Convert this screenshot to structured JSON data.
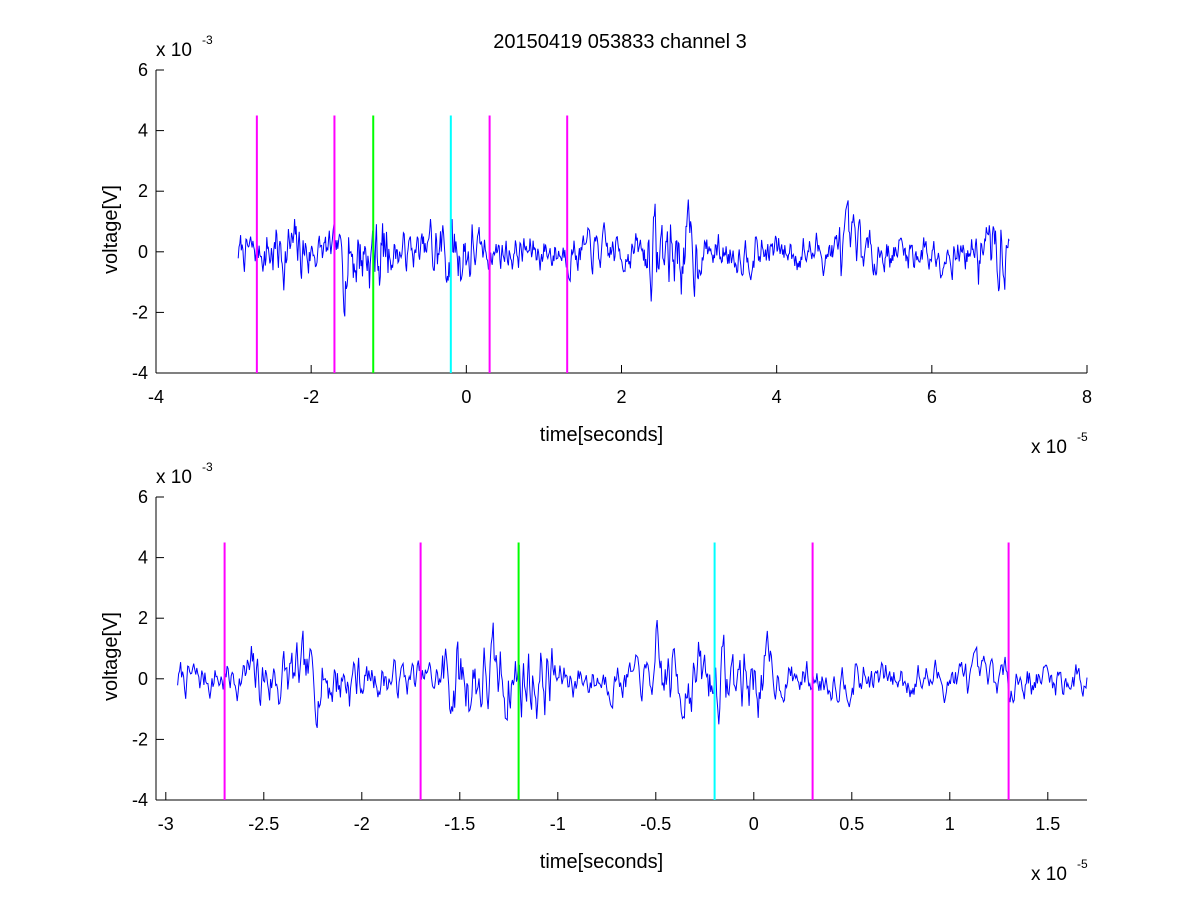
{
  "title": "20150419 053833 channel 3",
  "chart_data": [
    {
      "type": "line",
      "xlabel": "time[seconds]",
      "ylabel": "voltage[V]",
      "x_exponent_label": "x 10",
      "x_exponent": "-5",
      "y_exponent_label": "x 10",
      "y_exponent": "-3",
      "xlim": [
        -4,
        8
      ],
      "ylim": [
        -4,
        6
      ],
      "x_ticks": [
        -4,
        -2,
        0,
        2,
        4,
        6,
        8
      ],
      "x_tick_labels": [
        "-4",
        "-2",
        "0",
        "2",
        "4",
        "6",
        "8"
      ],
      "y_ticks": [
        -4,
        -2,
        0,
        2,
        4,
        6
      ],
      "y_tick_labels": [
        "-4",
        "-2",
        "0",
        "2",
        "4",
        "6"
      ],
      "grid": false,
      "signal": {
        "color": "#0000ff",
        "x_range": [
          -2.94,
          7.0
        ],
        "samples": 1000,
        "amplitude_scale": 1.0,
        "seed": 7
      },
      "markers": [
        {
          "x": -2.7,
          "color": "#ff00ff",
          "y_range": [
            -4,
            4.5
          ]
        },
        {
          "x": -1.7,
          "color": "#ff00ff",
          "y_range": [
            -4,
            4.5
          ]
        },
        {
          "x": -1.2,
          "color": "#00ff00",
          "y_range": [
            -4,
            4.5
          ]
        },
        {
          "x": -0.2,
          "color": "#00ffff",
          "y_range": [
            -4,
            4.5
          ]
        },
        {
          "x": 0.3,
          "color": "#ff00ff",
          "y_range": [
            -4,
            4.5
          ]
        },
        {
          "x": 1.3,
          "color": "#ff00ff",
          "y_range": [
            -4,
            4.5
          ]
        }
      ]
    },
    {
      "type": "line",
      "xlabel": "time[seconds]",
      "ylabel": "voltage[V]",
      "x_exponent_label": "x 10",
      "x_exponent": "-5",
      "y_exponent_label": "x 10",
      "y_exponent": "-3",
      "xlim": [
        -3.05,
        1.7
      ],
      "ylim": [
        -4,
        6
      ],
      "x_ticks": [
        -3,
        -2.5,
        -2,
        -1.5,
        -1,
        -0.5,
        0,
        0.5,
        1,
        1.5
      ],
      "x_tick_labels": [
        "-3",
        "-2.5",
        "-2",
        "-1.5",
        "-1",
        "-0.5",
        "0",
        "0.5",
        "1",
        "1.5"
      ],
      "y_ticks": [
        -4,
        -2,
        0,
        2,
        4,
        6
      ],
      "y_tick_labels": [
        "-4",
        "-2",
        "0",
        "2",
        "4",
        "6"
      ],
      "grid": false,
      "signal": {
        "color": "#0000ff",
        "x_range": [
          -2.94,
          1.7
        ],
        "samples": 900,
        "amplitude_scale": 1.0,
        "seed": 7
      },
      "markers": [
        {
          "x": -2.7,
          "color": "#ff00ff",
          "y_range": [
            -4,
            4.5
          ]
        },
        {
          "x": -1.7,
          "color": "#ff00ff",
          "y_range": [
            -4,
            4.5
          ]
        },
        {
          "x": -1.2,
          "color": "#00ff00",
          "y_range": [
            -4,
            4.5
          ]
        },
        {
          "x": -0.2,
          "color": "#00ffff",
          "y_range": [
            -4,
            4.5
          ]
        },
        {
          "x": 0.3,
          "color": "#ff00ff",
          "y_range": [
            -4,
            4.5
          ]
        },
        {
          "x": 1.3,
          "color": "#ff00ff",
          "y_range": [
            -4,
            4.5
          ]
        }
      ]
    }
  ]
}
